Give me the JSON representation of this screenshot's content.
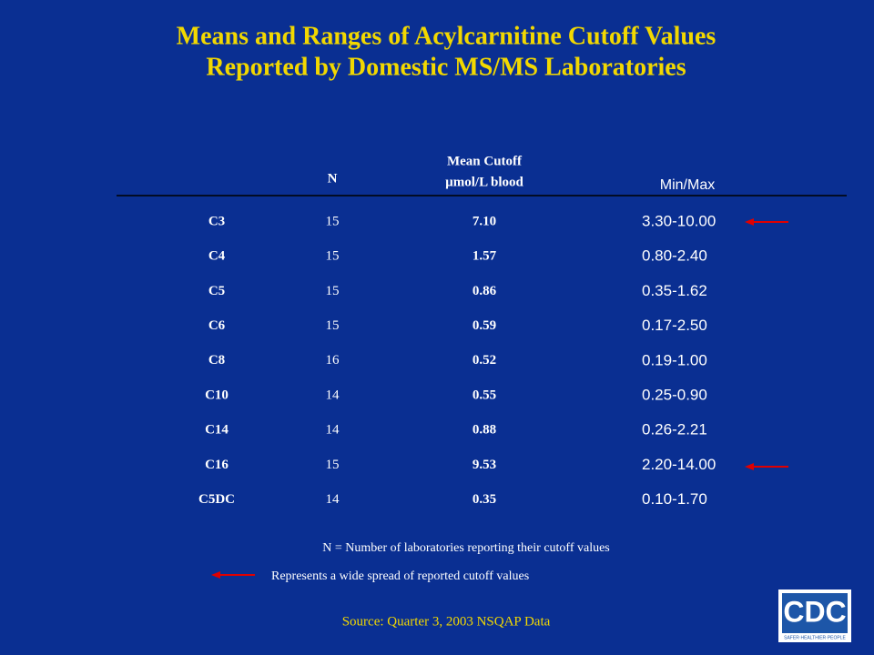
{
  "title": [
    "Means and Ranges of Acylcarnitine Cutoff Values",
    "Reported by Domestic MS/MS Laboratories"
  ],
  "table": {
    "header": {
      "n": "N",
      "mean": [
        "Mean Cutoff",
        "µmol/L blood"
      ],
      "range": "Min/Max"
    },
    "rows": [
      [
        "C3",
        "15",
        "7.10",
        "3.30-10.00"
      ],
      [
        "C4",
        "15",
        "1.57",
        "0.80-2.40"
      ],
      [
        "C5",
        "15",
        "0.86",
        "0.35-1.62"
      ],
      [
        "C6",
        "15",
        "0.59",
        "0.17-2.50"
      ],
      [
        "C8",
        "16",
        "0.52",
        "0.19-1.00"
      ],
      [
        "C10",
        "14",
        "0.55",
        "0.25-0.90"
      ],
      [
        "C14",
        "14",
        "0.88",
        "0.26-2.21"
      ],
      [
        "C16",
        "15",
        "9.53",
        "2.20-14.00"
      ],
      [
        "C5DC",
        "14",
        "0.35",
        "0.10-1.70"
      ]
    ]
  },
  "notes": [
    "N = Number of laboratories reporting their cutoff values",
    "Represents a wide spread of reported cutoff values"
  ],
  "source": "Source: Quarter 3, 2003 NSQAP Data",
  "logo": {
    "text": "CDC",
    "tagline": "SAFER·HEALTHIER·PEOPLE"
  }
}
